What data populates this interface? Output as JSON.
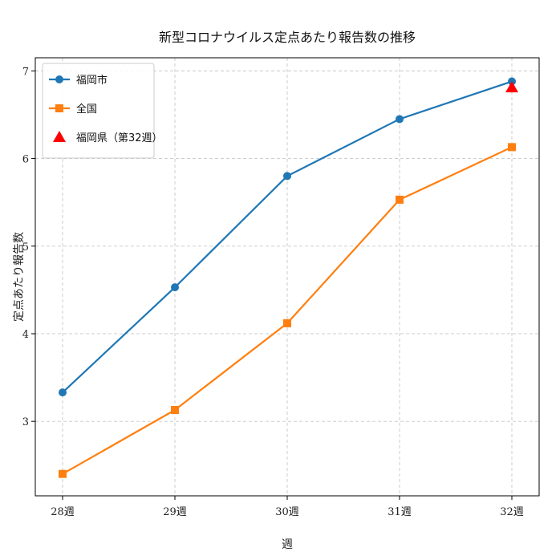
{
  "chart_data": {
    "type": "line",
    "title": "新型コロナウイルス定点あたり報告数の推移",
    "xlabel": "週",
    "ylabel": "定点あたり報告数",
    "categories": [
      "28週",
      "29週",
      "30週",
      "31週",
      "32週"
    ],
    "ylim": [
      2.15,
      7.15
    ],
    "yticks": [
      "3",
      "4",
      "5",
      "6",
      "7"
    ],
    "grid": true,
    "legend_position": "top-left",
    "series": [
      {
        "name": "福岡市",
        "values": [
          3.33,
          4.53,
          5.8,
          6.45,
          6.88
        ],
        "color": "#1f77b4",
        "marker": "circle"
      },
      {
        "name": "全国",
        "values": [
          2.4,
          3.13,
          4.12,
          5.53,
          6.13
        ],
        "color": "#ff7f0e",
        "marker": "square"
      }
    ],
    "points": [
      {
        "name": "福岡県（第32週）",
        "category": "32週",
        "value": 6.81,
        "color": "#ff0000",
        "marker": "triangle"
      }
    ]
  }
}
